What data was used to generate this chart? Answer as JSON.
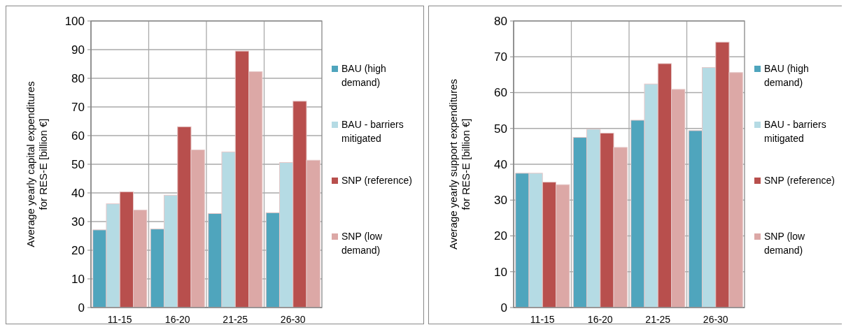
{
  "chart_data": [
    {
      "type": "bar",
      "ylabel": "Average yearly capital expenditures for RES-E [billion €]",
      "categories": [
        "11-15",
        "16-20",
        "21-25",
        "26-30"
      ],
      "series": [
        {
          "name": "BAU (high demand)",
          "color": "#4fa5bd",
          "values": [
            27.1,
            27.4,
            32.8,
            33.1
          ]
        },
        {
          "name": "BAU - barriers mitigated",
          "color": "#b5dbe4",
          "values": [
            36.2,
            39.2,
            54.3,
            50.6
          ]
        },
        {
          "name": "SNP (reference)",
          "color": "#b84f4d",
          "values": [
            40.4,
            63.1,
            89.5,
            72.0
          ]
        },
        {
          "name": "SNP (low demand)",
          "color": "#dca8a6",
          "values": [
            34.0,
            55.0,
            82.3,
            51.4
          ]
        }
      ],
      "ylim": [
        0,
        100
      ],
      "yticks": [
        0,
        10,
        20,
        30,
        40,
        50,
        60,
        70,
        80,
        90,
        100
      ],
      "grid": true,
      "legend": "right"
    },
    {
      "type": "bar",
      "ylabel": "Average yearly support expenditures for RES-E [billion €]",
      "categories": [
        "11-15",
        "16-20",
        "21-25",
        "26-30"
      ],
      "series": [
        {
          "name": "BAU (high demand)",
          "color": "#4fa5bd",
          "values": [
            37.5,
            47.5,
            52.3,
            49.4
          ]
        },
        {
          "name": "BAU - barriers mitigated",
          "color": "#b5dbe4",
          "values": [
            37.5,
            49.8,
            62.4,
            67.0
          ]
        },
        {
          "name": "SNP (reference)",
          "color": "#b84f4d",
          "values": [
            35.0,
            48.7,
            68.1,
            74.1
          ]
        },
        {
          "name": "SNP (low demand)",
          "color": "#dca8a6",
          "values": [
            34.3,
            44.7,
            60.9,
            65.6
          ]
        }
      ],
      "ylim": [
        0,
        80
      ],
      "yticks": [
        0,
        10,
        20,
        30,
        40,
        50,
        60,
        70,
        80
      ],
      "grid": true,
      "legend": "right"
    }
  ]
}
